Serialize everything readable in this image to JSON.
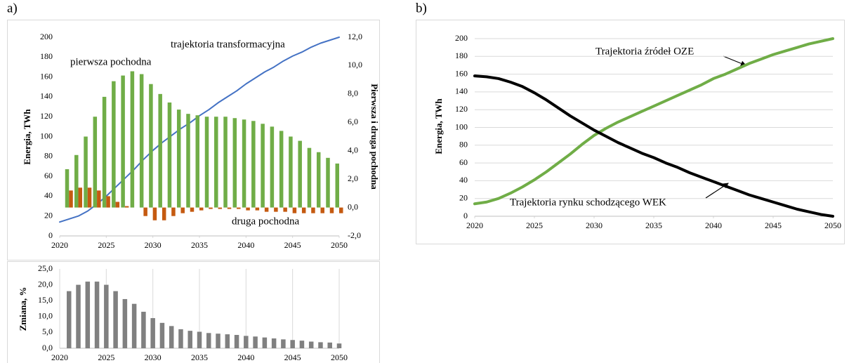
{
  "chart_data": [
    {
      "type": "bar",
      "panel": "a)",
      "y_label": "Energia, TWh",
      "y2_label": "Pierwsza i druga pochodna",
      "xlim": [
        2020,
        2050
      ],
      "xticks": [
        2020,
        2025,
        2030,
        2035,
        2040,
        2045,
        2050
      ],
      "ylim": [
        0,
        200
      ],
      "yticks": [
        0,
        20,
        40,
        60,
        80,
        100,
        120,
        140,
        160,
        180,
        200
      ],
      "y2lim": [
        -2,
        12
      ],
      "y2ticks": [
        {
          "value": -2,
          "label": "-2,0"
        },
        {
          "value": 0,
          "label": "0,0"
        },
        {
          "value": 2,
          "label": "2,0"
        },
        {
          "value": 4,
          "label": "4,0"
        },
        {
          "value": 6,
          "label": "6,0"
        },
        {
          "value": 8,
          "label": "8,0"
        },
        {
          "value": 10,
          "label": "10,0"
        },
        {
          "value": 12,
          "label": "12,0"
        }
      ],
      "grid": false,
      "x": [
        2021,
        2022,
        2023,
        2024,
        2025,
        2026,
        2027,
        2028,
        2029,
        2030,
        2031,
        2032,
        2033,
        2034,
        2035,
        2036,
        2037,
        2038,
        2039,
        2040,
        2041,
        2042,
        2043,
        2044,
        2045,
        2046,
        2047,
        2048,
        2049,
        2050
      ],
      "series": [
        {
          "name": "trajektoria transformacyjna",
          "type": "line",
          "color": "#4472c4",
          "x": [
            2020,
            2021,
            2022,
            2023,
            2024,
            2025,
            2026,
            2027,
            2028,
            2029,
            2030,
            2031,
            2032,
            2033,
            2034,
            2035,
            2036,
            2037,
            2038,
            2039,
            2040,
            2041,
            2042,
            2043,
            2044,
            2045,
            2046,
            2047,
            2048,
            2049,
            2050
          ],
          "values": [
            14,
            17,
            20,
            25,
            32,
            40,
            49,
            58,
            67,
            77,
            86,
            94,
            101,
            108,
            114,
            121,
            127,
            134,
            140,
            146,
            153,
            159,
            165,
            170,
            176,
            181,
            185,
            190,
            194,
            197,
            200
          ]
        },
        {
          "name": "pierwsza pochodna",
          "type": "bar",
          "axis": "y2",
          "color": "#70ad47",
          "values": [
            2.7,
            3.7,
            5.0,
            6.4,
            7.8,
            8.9,
            9.3,
            9.6,
            9.4,
            8.7,
            8.0,
            7.4,
            6.9,
            6.6,
            6.5,
            6.4,
            6.4,
            6.4,
            6.3,
            6.2,
            6.1,
            5.9,
            5.7,
            5.4,
            5.0,
            4.7,
            4.2,
            3.9,
            3.5,
            3.1
          ]
        },
        {
          "name": "druga pochodna",
          "type": "bar",
          "axis": "y2",
          "color": "#c55a11",
          "values": [
            1.2,
            1.4,
            1.4,
            1.2,
            0.8,
            0.4,
            0.1,
            0.0,
            -0.6,
            -0.9,
            -0.9,
            -0.6,
            -0.4,
            -0.3,
            -0.2,
            -0.1,
            -0.1,
            -0.1,
            -0.1,
            -0.2,
            -0.2,
            -0.3,
            -0.3,
            -0.3,
            -0.4,
            -0.4,
            -0.4,
            -0.4,
            -0.4,
            -0.4
          ]
        }
      ]
    },
    {
      "type": "bar",
      "y_label": "Zmiana, %",
      "xlim": [
        2020,
        2050
      ],
      "xticks": [
        2020,
        2025,
        2030,
        2035,
        2040,
        2045,
        2050
      ],
      "ylim": [
        0,
        25
      ],
      "yticks": [
        {
          "value": 0,
          "label": "0,0"
        },
        {
          "value": 5,
          "label": "5,0"
        },
        {
          "value": 10,
          "label": "10,0"
        },
        {
          "value": 15,
          "label": "15,0"
        },
        {
          "value": 20,
          "label": "20,0"
        },
        {
          "value": 25,
          "label": "25,0"
        }
      ],
      "grid": "x",
      "x": [
        2021,
        2022,
        2023,
        2024,
        2025,
        2026,
        2027,
        2028,
        2029,
        2030,
        2031,
        2032,
        2033,
        2034,
        2035,
        2036,
        2037,
        2038,
        2039,
        2040,
        2041,
        2042,
        2043,
        2044,
        2045,
        2046,
        2047,
        2048,
        2049,
        2050
      ],
      "series": [
        {
          "type": "bar",
          "color": "#808080",
          "values": [
            18,
            20,
            21,
            21,
            20,
            18,
            15.5,
            14,
            11.5,
            9.5,
            8,
            7,
            6,
            5.5,
            5.2,
            4.8,
            4.6,
            4.4,
            4.2,
            3.9,
            3.7,
            3.4,
            3.1,
            2.8,
            2.6,
            2.4,
            2.1,
            1.9,
            1.8,
            1.5
          ]
        }
      ]
    },
    {
      "type": "line",
      "panel": "b)",
      "y_label": "Energia, TWh",
      "xlim": [
        2020,
        2050
      ],
      "xticks": [
        2020,
        2025,
        2030,
        2035,
        2040,
        2045,
        2050
      ],
      "ylim": [
        0,
        200
      ],
      "yticks": [
        0,
        20,
        40,
        60,
        80,
        100,
        120,
        140,
        160,
        180,
        200
      ],
      "grid": "y",
      "x": [
        2020,
        2021,
        2022,
        2023,
        2024,
        2025,
        2026,
        2027,
        2028,
        2029,
        2030,
        2031,
        2032,
        2033,
        2034,
        2035,
        2036,
        2037,
        2038,
        2039,
        2040,
        2041,
        2042,
        2043,
        2044,
        2045,
        2046,
        2047,
        2048,
        2049,
        2050
      ],
      "series": [
        {
          "name": "Trajektoria źródeł OZE",
          "type": "line",
          "color": "#70ad47",
          "values": [
            14,
            16,
            20,
            26,
            33,
            41,
            50,
            60,
            70,
            81,
            91,
            99,
            106,
            112,
            118,
            124,
            130,
            136,
            142,
            148,
            155,
            160,
            166,
            172,
            177,
            182,
            186,
            190,
            194,
            197,
            200
          ]
        },
        {
          "name": "Trajektoria rynku schodzącego WEK",
          "type": "line",
          "color": "#000000",
          "values": [
            158,
            157,
            155,
            151,
            146,
            139,
            131,
            122,
            113,
            105,
            97,
            90,
            83,
            77,
            71,
            66,
            60,
            55,
            49,
            44,
            39,
            34,
            29,
            24,
            20,
            16,
            12,
            8,
            5,
            2,
            0
          ]
        }
      ]
    }
  ]
}
